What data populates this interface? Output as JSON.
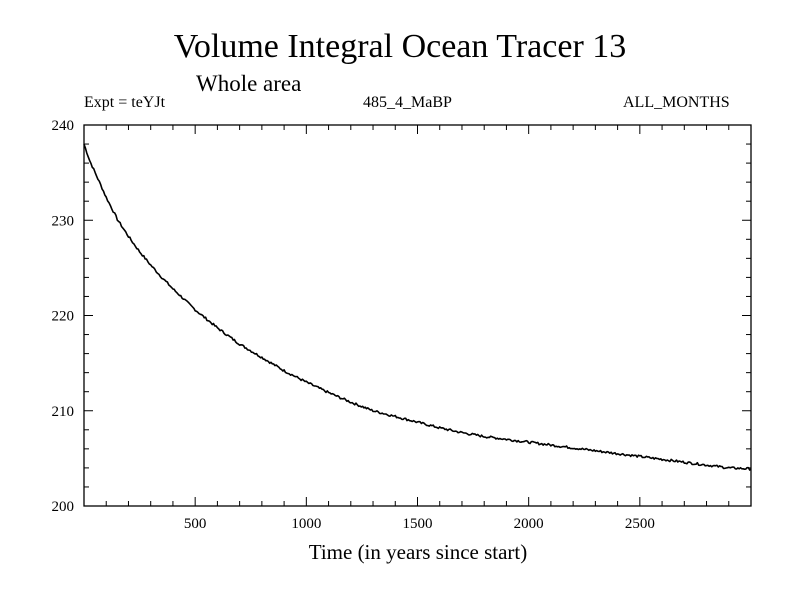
{
  "chart_data": {
    "type": "line",
    "title": "Volume Integral Ocean Tracer 13",
    "subtitle": "Whole area",
    "annotations": {
      "expt": "Expt = teYJt",
      "run_id": "485_4_MaBP",
      "months": "ALL_MONTHS"
    },
    "xlabel": "Time (in years since start)",
    "ylabel": "",
    "xlim": [
      0,
      3000
    ],
    "ylim": [
      200,
      240
    ],
    "xticks_major": [
      500,
      1000,
      1500,
      2000,
      2500
    ],
    "yticks_major": [
      200,
      210,
      220,
      230,
      240
    ],
    "grid": false,
    "series": [
      {
        "name": "Ocean Tracer 13",
        "color": "#000000",
        "x": [
          0,
          25,
          50,
          100,
          150,
          200,
          250,
          300,
          350,
          400,
          500,
          600,
          700,
          800,
          900,
          1000,
          1100,
          1200,
          1300,
          1400,
          1500,
          1600,
          1700,
          1800,
          1900,
          2000,
          2100,
          2200,
          2300,
          2400,
          2500,
          2600,
          2700,
          2800,
          2900,
          3000
        ],
        "y": [
          238.0,
          236.3,
          235.0,
          232.4,
          230.1,
          228.3,
          226.7,
          225.3,
          224.0,
          222.8,
          220.6,
          218.7,
          217.0,
          215.6,
          214.2,
          213.0,
          211.9,
          210.9,
          210.0,
          209.4,
          208.8,
          208.2,
          207.7,
          207.3,
          207.0,
          206.7,
          206.4,
          206.1,
          205.8,
          205.5,
          205.2,
          204.9,
          204.6,
          204.3,
          204.0,
          203.9
        ]
      }
    ]
  }
}
